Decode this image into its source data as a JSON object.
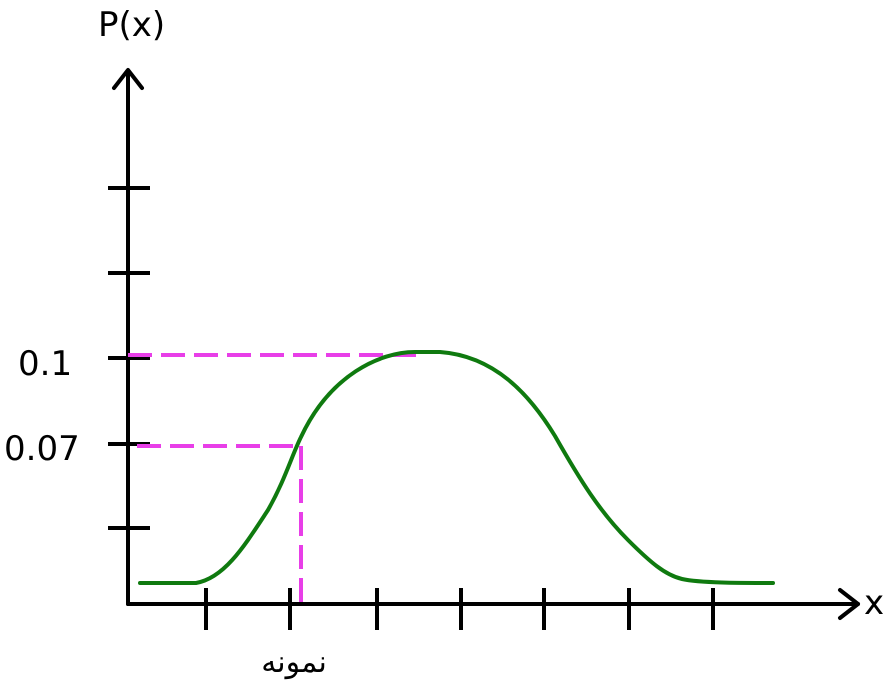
{
  "colors": {
    "axis": "#000000",
    "curve": "#0f7a0f",
    "guide": "#e83ee8",
    "background": "#ffffff"
  },
  "labels": {
    "y_axis": "P(x)",
    "x_axis": "x",
    "y_tick_0_1": "0.1",
    "y_tick_0_07": "0.07",
    "x_marker": "نمونه"
  }
}
